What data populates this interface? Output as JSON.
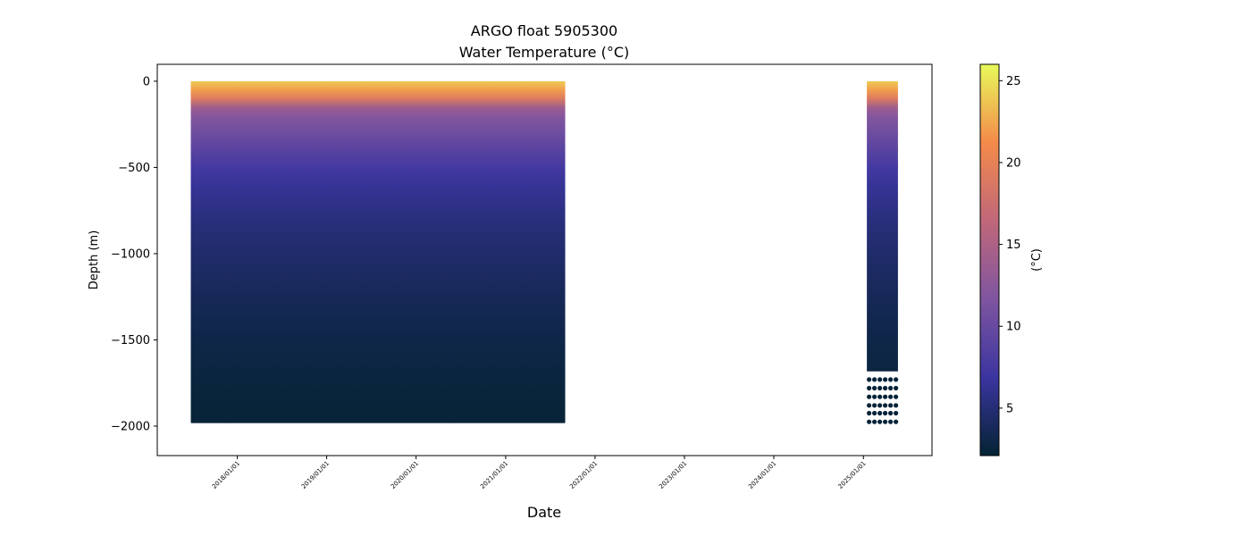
{
  "chart_data": {
    "type": "profile",
    "title": "ARGO float 5905300",
    "subtitle": "Water Temperature (°C)",
    "xlabel": "Date",
    "ylabel": "Depth (m)",
    "xlim": [
      "2017-02-08",
      "2025-10-08"
    ],
    "xticks": [
      {
        "value": "2018-01-01",
        "label": "2018/01/01"
      },
      {
        "value": "2019-01-01",
        "label": "2019/01/01"
      },
      {
        "value": "2020-01-01",
        "label": "2020/01/01"
      },
      {
        "value": "2021-01-01",
        "label": "2021/01/01"
      },
      {
        "value": "2022-01-01",
        "label": "2022/01/01"
      },
      {
        "value": "2023-01-01",
        "label": "2023/01/01"
      },
      {
        "value": "2024-01-01",
        "label": "2024/01/01"
      },
      {
        "value": "2025-01-01",
        "label": "2025/01/01"
      }
    ],
    "ylim": [
      -2171,
      98
    ],
    "yticks": [
      {
        "value": -2000,
        "label": "−2000"
      },
      {
        "value": -1500,
        "label": "−1500"
      },
      {
        "value": -1000,
        "label": "−1000"
      },
      {
        "value": -500,
        "label": "−500"
      },
      0
    ],
    "depth": [
      0,
      -50,
      -100,
      -150,
      -200,
      -300,
      -400,
      -500,
      -600,
      -800,
      -1000,
      -1200,
      -1500,
      -1800,
      -2000
    ],
    "temperature": [
      24,
      22,
      19,
      14,
      12,
      10.5,
      9,
      7.5,
      6.5,
      5.3,
      4.5,
      3.8,
      3,
      2.5,
      2.3
    ],
    "periods": [
      {
        "start": "2017-06-25",
        "end": "2021-09-01",
        "max_depth": -1980,
        "sparse_depths": []
      },
      {
        "start": "2025-01-15",
        "end": "2025-05-22",
        "max_depth": -1680,
        "sparse_depths": [
          -1730,
          -1780,
          -1830,
          -1880,
          -1925,
          -1975
        ]
      }
    ],
    "colorbar_label": "(°C)",
    "clim": [
      2.1,
      26
    ],
    "cticks": [
      5,
      10,
      15,
      20,
      25
    ],
    "colormap": [
      "#042333",
      "#3b35a0",
      "#7f55a0",
      "#c0677a",
      "#f48a4a",
      "#e8fa5b"
    ]
  }
}
